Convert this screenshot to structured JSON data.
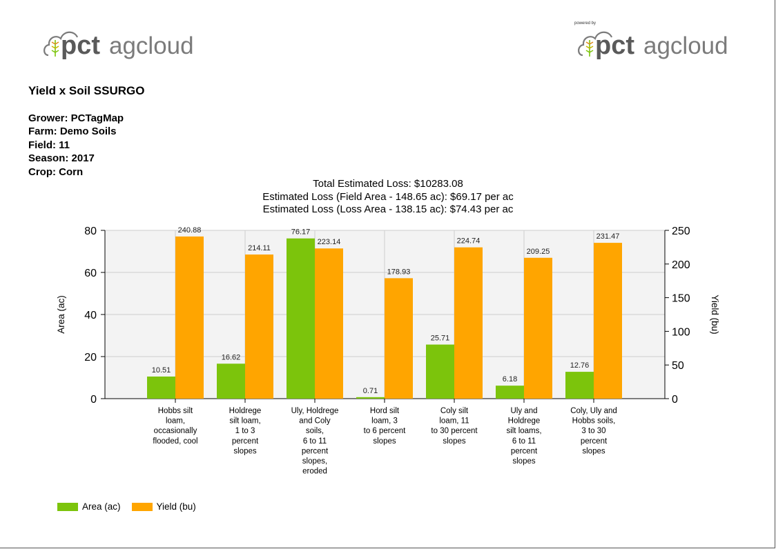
{
  "brand": {
    "logo_left": {
      "mark": "pct",
      "word": "agcloud"
    },
    "logo_right": {
      "mark": "pct",
      "word": "agcloud",
      "powered_by": "powered by"
    }
  },
  "report": {
    "title": "Yield x Soil SSURGO",
    "info": [
      "Grower: PCTagMap",
      "Farm: Demo Soils",
      "Field: 11",
      "Season: 2017",
      "Crop: Corn"
    ],
    "loss_lines": [
      "Total Estimated Loss: $10283.08",
      "Estimated Loss (Field Area - 148.65 ac): $69.17 per ac",
      "Estimated Loss (Loss Area - 138.15 ac): $74.43 per ac"
    ]
  },
  "colors": {
    "area": "#7cc40c",
    "yield": "#ffa500",
    "plot_bg": "#f3f3f3",
    "grid": "#cccccc",
    "logo_gray": "#7b7b7b",
    "logo_dark": "#5a5a5a"
  },
  "chart_data": {
    "type": "bar",
    "title": "",
    "categories": [
      [
        "Hobbs silt",
        "loam,",
        "occasionally",
        "flooded, cool"
      ],
      [
        "Holdrege",
        "silt loam,",
        "1 to 3",
        "percent",
        "slopes"
      ],
      [
        "Uly, Holdrege",
        "and Coly",
        "soils,",
        "6 to 11",
        "percent",
        "slopes,",
        "eroded"
      ],
      [
        "Hord silt",
        "loam, 3",
        "to 6 percent",
        "slopes"
      ],
      [
        "Coly silt",
        "loam, 11",
        "to 30 percent",
        "slopes"
      ],
      [
        "Uly and",
        "Holdrege",
        "silt loams,",
        "6 to 11",
        "percent",
        "slopes"
      ],
      [
        "Coly, Uly and",
        "Hobbs soils,",
        "3 to 30",
        "percent",
        "slopes"
      ]
    ],
    "series": [
      {
        "name": "Area (ac)",
        "axis": "left",
        "values": [
          10.51,
          16.62,
          76.17,
          0.71,
          25.71,
          6.18,
          12.76
        ],
        "labels": [
          "10.51",
          "16.62",
          "76.17",
          "0.71",
          "25.71",
          "6.18",
          "12.76"
        ]
      },
      {
        "name": "Yield (bu)",
        "axis": "right",
        "values": [
          240.88,
          214.11,
          223.14,
          178.93,
          224.74,
          209.25,
          231.47
        ],
        "labels": [
          "240.88",
          "214.11",
          "223.14",
          "178.93",
          "224.74",
          "209.25",
          "231.47"
        ]
      }
    ],
    "ylabel_left": "Area (ac)",
    "ylabel_right": "Yield (bu)",
    "ylim_left": [
      0,
      80
    ],
    "ylim_right": [
      0,
      250
    ],
    "yticks_left": [
      "0",
      "20",
      "40",
      "60",
      "80"
    ],
    "yticks_right": [
      "0",
      "50",
      "100",
      "150",
      "200",
      "250"
    ],
    "grid": true,
    "legend": "bottom-left"
  }
}
